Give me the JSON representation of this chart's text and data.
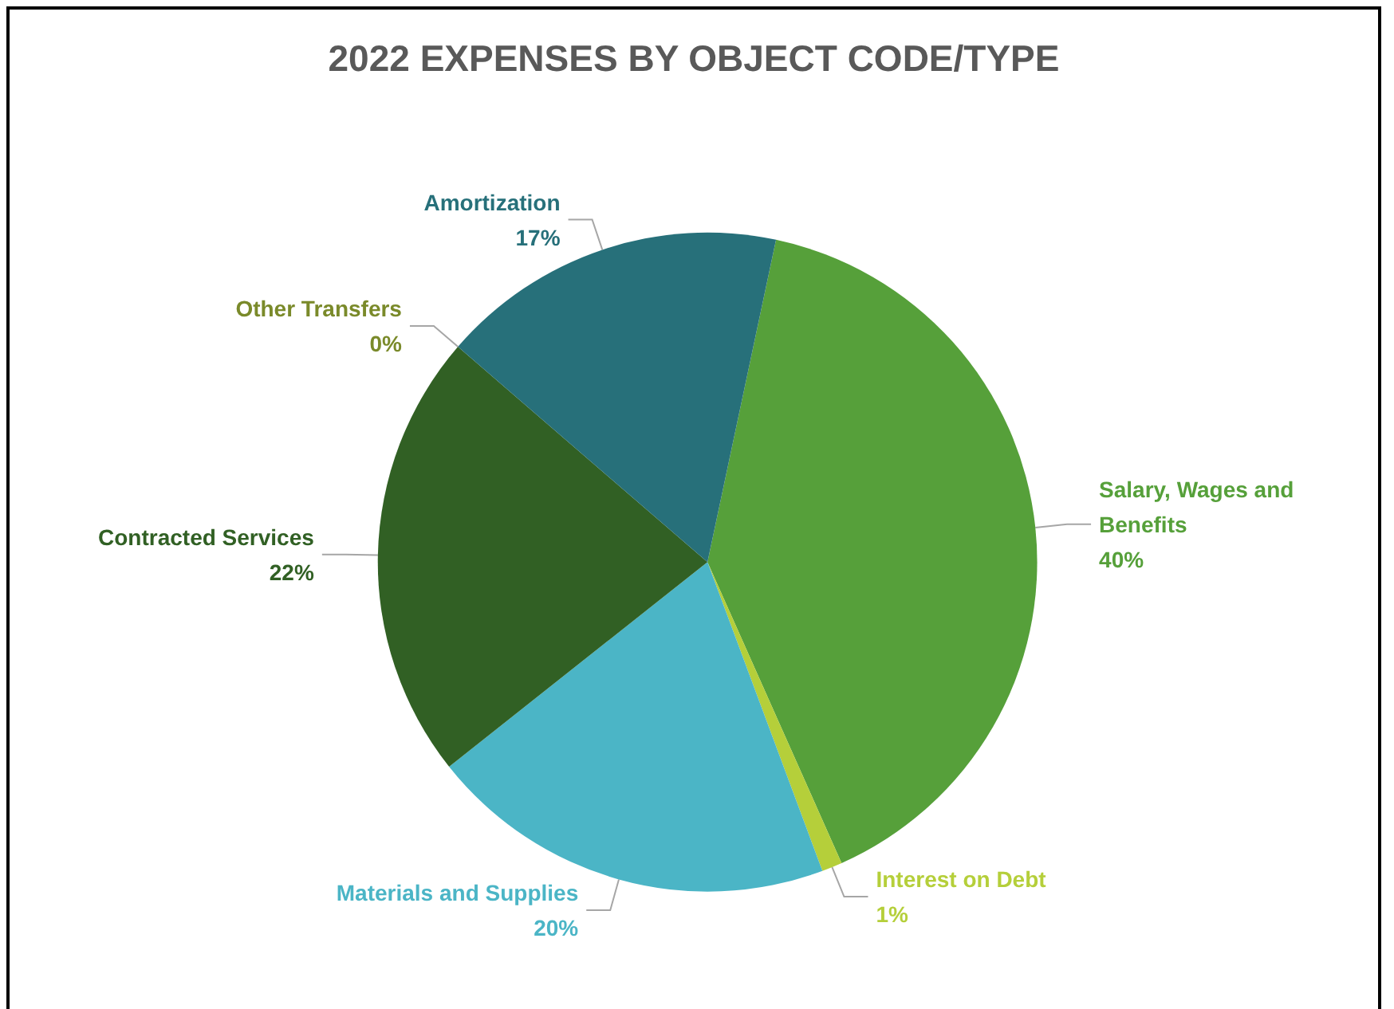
{
  "chart_data": {
    "type": "pie",
    "title": "2022 EXPENSES BY OBJECT CODE/TYPE",
    "categories": [
      "Salary, Wages and Benefits",
      "Interest on Debt",
      "Materials and Supplies",
      "Contracted Services",
      "Other Transfers",
      "Amortization"
    ],
    "values": [
      40,
      1,
      20,
      22,
      0,
      17
    ],
    "value_labels": [
      "40%",
      "1%",
      "20%",
      "22%",
      "0%",
      "17%"
    ],
    "colors": [
      "#56a03a",
      "#b5cf3a",
      "#4bb5c6",
      "#316024",
      "#7a8a2a",
      "#27707a"
    ],
    "legend": false
  }
}
